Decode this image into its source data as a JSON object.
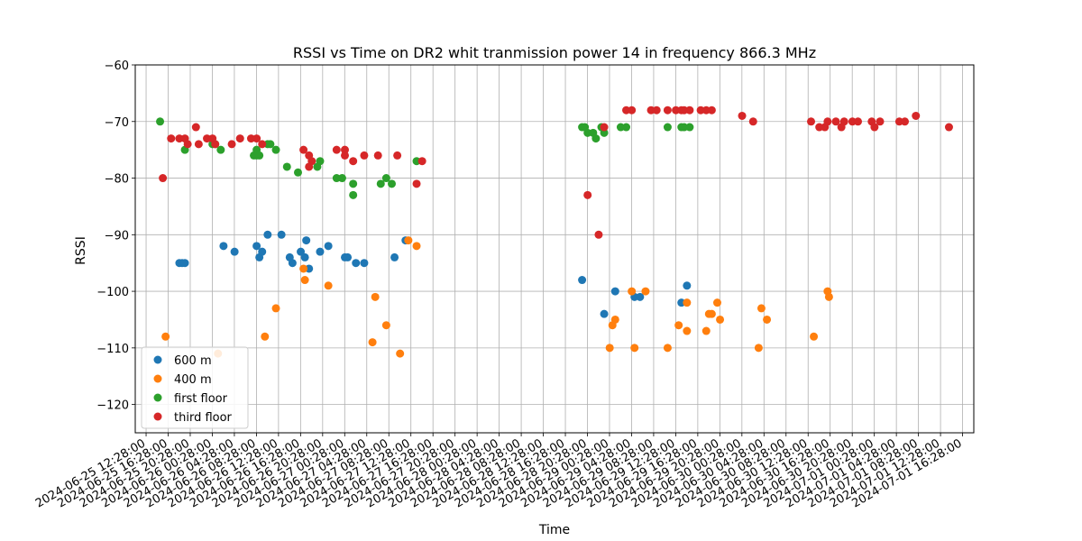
{
  "chart_data": {
    "type": "scatter",
    "title": "RSSI vs Time on DR2  whit tranmission power 14 in frequency 866.3 MHz",
    "xlabel": "Time",
    "ylabel": "RSSI",
    "ylim": [
      -125,
      -60
    ],
    "yticks": [
      -60,
      -70,
      -80,
      -90,
      -100,
      -110,
      -120
    ],
    "xlim": [
      "2024-06-25 10:30",
      "2024-07-01 18:30"
    ],
    "xticks": [
      "2024-06-25 12:28:00",
      "2024-06-25 16:28:00",
      "2024-06-25 20:28:00",
      "2024-06-26 00:28:00",
      "2024-06-26 04:28:00",
      "2024-06-26 08:28:00",
      "2024-06-26 12:28:00",
      "2024-06-26 16:28:00",
      "2024-06-26 20:28:00",
      "2024-06-27 00:28:00",
      "2024-06-27 04:28:00",
      "2024-06-27 08:28:00",
      "2024-06-27 12:28:00",
      "2024-06-27 16:28:00",
      "2024-06-27 20:28:00",
      "2024-06-28 00:28:00",
      "2024-06-28 04:28:00",
      "2024-06-28 08:28:00",
      "2024-06-28 12:28:00",
      "2024-06-28 16:28:00",
      "2024-06-28 20:28:00",
      "2024-06-29 00:28:00",
      "2024-06-29 04:28:00",
      "2024-06-29 08:28:00",
      "2024-06-29 12:28:00",
      "2024-06-29 16:28:00",
      "2024-06-29 20:28:00",
      "2024-06-30 00:28:00",
      "2024-06-30 04:28:00",
      "2024-06-30 08:28:00",
      "2024-06-30 12:28:00",
      "2024-06-30 16:28:00",
      "2024-06-30 20:28:00",
      "2024-07-01 00:28:00",
      "2024-07-01 04:28:00",
      "2024-07-01 08:28:00",
      "2024-07-01 12:28:00",
      "2024-07-01 16:28:00"
    ],
    "grid": true,
    "legend_position": "lower-left",
    "series": [
      {
        "name": "600 m",
        "color": "#1f77b4",
        "points": [
          [
            "2024-06-25 18:30",
            -95
          ],
          [
            "2024-06-25 19:00",
            -95
          ],
          [
            "2024-06-25 19:30",
            -95
          ],
          [
            "2024-06-26 02:30",
            -92
          ],
          [
            "2024-06-26 04:30",
            -93
          ],
          [
            "2024-06-26 08:30",
            -92
          ],
          [
            "2024-06-26 09:00",
            -94
          ],
          [
            "2024-06-26 09:30",
            -93
          ],
          [
            "2024-06-26 10:30",
            -90
          ],
          [
            "2024-06-26 13:00",
            -90
          ],
          [
            "2024-06-26 14:30",
            -94
          ],
          [
            "2024-06-26 15:00",
            -95
          ],
          [
            "2024-06-26 16:30",
            -93
          ],
          [
            "2024-06-26 17:15",
            -94
          ],
          [
            "2024-06-26 17:30",
            -91
          ],
          [
            "2024-06-26 18:00",
            -96
          ],
          [
            "2024-06-26 20:00",
            -93
          ],
          [
            "2024-06-26 21:30",
            -92
          ],
          [
            "2024-06-27 00:30",
            -94
          ],
          [
            "2024-06-27 01:00",
            -94
          ],
          [
            "2024-06-27 02:30",
            -95
          ],
          [
            "2024-06-27 04:00",
            -95
          ],
          [
            "2024-06-27 09:30",
            -94
          ],
          [
            "2024-06-27 11:30",
            -91
          ],
          [
            "2024-06-28 19:30",
            -98
          ],
          [
            "2024-06-28 23:30",
            -104
          ],
          [
            "2024-06-29 01:30",
            -100
          ],
          [
            "2024-06-29 05:00",
            -101
          ],
          [
            "2024-06-29 06:00",
            -101
          ],
          [
            "2024-06-29 13:30",
            -102
          ],
          [
            "2024-06-29 14:30",
            -99
          ]
        ]
      },
      {
        "name": "400 m",
        "color": "#ff7f0e",
        "points": [
          [
            "2024-06-25 16:00",
            -108
          ],
          [
            "2024-06-26 01:30",
            -111
          ],
          [
            "2024-06-26 10:00",
            -108
          ],
          [
            "2024-06-26 12:00",
            -103
          ],
          [
            "2024-06-26 17:00",
            -96
          ],
          [
            "2024-06-26 17:15",
            -98
          ],
          [
            "2024-06-26 21:30",
            -99
          ],
          [
            "2024-06-27 05:30",
            -109
          ],
          [
            "2024-06-27 06:00",
            -101
          ],
          [
            "2024-06-27 08:00",
            -106
          ],
          [
            "2024-06-27 10:30",
            -111
          ],
          [
            "2024-06-27 12:00",
            -91
          ],
          [
            "2024-06-27 13:30",
            -92
          ],
          [
            "2024-06-29 00:30",
            -110
          ],
          [
            "2024-06-29 01:00",
            -106
          ],
          [
            "2024-06-29 01:30",
            -105
          ],
          [
            "2024-06-29 04:30",
            -100
          ],
          [
            "2024-06-29 05:00",
            -110
          ],
          [
            "2024-06-29 07:00",
            -100
          ],
          [
            "2024-06-29 11:00",
            -110
          ],
          [
            "2024-06-29 13:00",
            -106
          ],
          [
            "2024-06-29 14:30",
            -107
          ],
          [
            "2024-06-29 14:30",
            -102
          ],
          [
            "2024-06-29 18:00",
            -107
          ],
          [
            "2024-06-29 18:30",
            -104
          ],
          [
            "2024-06-29 19:00",
            -104
          ],
          [
            "2024-06-29 20:00",
            -102
          ],
          [
            "2024-06-29 20:30",
            -105
          ],
          [
            "2024-06-30 03:30",
            -110
          ],
          [
            "2024-06-30 04:00",
            -103
          ],
          [
            "2024-06-30 05:00",
            -105
          ],
          [
            "2024-06-30 13:30",
            -108
          ],
          [
            "2024-06-30 16:00",
            -100
          ],
          [
            "2024-06-30 16:15",
            -101
          ]
        ]
      },
      {
        "name": "first floor",
        "color": "#2ca02c",
        "points": [
          [
            "2024-06-25 15:00",
            -70
          ],
          [
            "2024-06-25 19:30",
            -75
          ],
          [
            "2024-06-26 00:30",
            -74
          ],
          [
            "2024-06-26 01:00",
            -74
          ],
          [
            "2024-06-26 02:00",
            -75
          ],
          [
            "2024-06-26 08:00",
            -76
          ],
          [
            "2024-06-26 08:30",
            -75
          ],
          [
            "2024-06-26 08:30",
            -76
          ],
          [
            "2024-06-26 09:00",
            -76
          ],
          [
            "2024-06-26 10:30",
            -74
          ],
          [
            "2024-06-26 11:00",
            -74
          ],
          [
            "2024-06-26 12:00",
            -75
          ],
          [
            "2024-06-26 14:00",
            -78
          ],
          [
            "2024-06-26 16:00",
            -79
          ],
          [
            "2024-06-26 19:30",
            -78
          ],
          [
            "2024-06-26 20:00",
            -77
          ],
          [
            "2024-06-26 23:00",
            -80
          ],
          [
            "2024-06-27 00:00",
            -80
          ],
          [
            "2024-06-27 02:00",
            -83
          ],
          [
            "2024-06-27 02:00",
            -81
          ],
          [
            "2024-06-27 07:00",
            -81
          ],
          [
            "2024-06-27 08:00",
            -80
          ],
          [
            "2024-06-27 09:00",
            -81
          ],
          [
            "2024-06-27 13:30",
            -77
          ],
          [
            "2024-06-28 19:30",
            -71
          ],
          [
            "2024-06-28 20:00",
            -71
          ],
          [
            "2024-06-28 20:30",
            -72
          ],
          [
            "2024-06-28 21:30",
            -72
          ],
          [
            "2024-06-28 22:00",
            -73
          ],
          [
            "2024-06-28 23:00",
            -71
          ],
          [
            "2024-06-28 23:30",
            -72
          ],
          [
            "2024-06-29 02:30",
            -71
          ],
          [
            "2024-06-29 03:30",
            -71
          ],
          [
            "2024-06-29 11:00",
            -71
          ],
          [
            "2024-06-29 13:30",
            -71
          ],
          [
            "2024-06-29 14:00",
            -71
          ],
          [
            "2024-06-29 15:00",
            -71
          ]
        ]
      },
      {
        "name": "third floor",
        "color": "#d62728",
        "points": [
          [
            "2024-06-25 15:30",
            -80
          ],
          [
            "2024-06-25 17:00",
            -73
          ],
          [
            "2024-06-25 18:30",
            -73
          ],
          [
            "2024-06-25 19:30",
            -73
          ],
          [
            "2024-06-25 20:00",
            -74
          ],
          [
            "2024-06-25 21:30",
            -71
          ],
          [
            "2024-06-25 22:00",
            -74
          ],
          [
            "2024-06-25 23:30",
            -73
          ],
          [
            "2024-06-26 00:30",
            -73
          ],
          [
            "2024-06-26 01:00",
            -74
          ],
          [
            "2024-06-26 04:00",
            -74
          ],
          [
            "2024-06-26 05:30",
            -73
          ],
          [
            "2024-06-26 07:30",
            -73
          ],
          [
            "2024-06-26 08:30",
            -73
          ],
          [
            "2024-06-26 09:30",
            -74
          ],
          [
            "2024-06-26 17:00",
            -75
          ],
          [
            "2024-06-26 18:00",
            -76
          ],
          [
            "2024-06-26 18:30",
            -77
          ],
          [
            "2024-06-26 18:00",
            -78
          ],
          [
            "2024-06-26 23:00",
            -75
          ],
          [
            "2024-06-27 00:30",
            -75
          ],
          [
            "2024-06-27 00:30",
            -76
          ],
          [
            "2024-06-27 02:00",
            -77
          ],
          [
            "2024-06-27 04:00",
            -76
          ],
          [
            "2024-06-27 06:30",
            -76
          ],
          [
            "2024-06-27 10:00",
            -76
          ],
          [
            "2024-06-27 13:30",
            -81
          ],
          [
            "2024-06-27 14:30",
            -77
          ],
          [
            "2024-06-28 20:30",
            -83
          ],
          [
            "2024-06-28 22:30",
            -90
          ],
          [
            "2024-06-28 23:30",
            -71
          ],
          [
            "2024-06-29 03:30",
            -68
          ],
          [
            "2024-06-29 04:30",
            -68
          ],
          [
            "2024-06-29 08:00",
            -68
          ],
          [
            "2024-06-29 09:00",
            -68
          ],
          [
            "2024-06-29 11:00",
            -68
          ],
          [
            "2024-06-29 12:30",
            -68
          ],
          [
            "2024-06-29 13:30",
            -68
          ],
          [
            "2024-06-29 14:00",
            -68
          ],
          [
            "2024-06-29 15:00",
            -68
          ],
          [
            "2024-06-29 17:00",
            -68
          ],
          [
            "2024-06-29 18:00",
            -68
          ],
          [
            "2024-06-29 19:00",
            -68
          ],
          [
            "2024-06-30 00:30",
            -69
          ],
          [
            "2024-06-30 02:30",
            -70
          ],
          [
            "2024-06-30 13:00",
            -70
          ],
          [
            "2024-06-30 14:30",
            -71
          ],
          [
            "2024-06-30 15:30",
            -71
          ],
          [
            "2024-06-30 16:00",
            -70
          ],
          [
            "2024-06-30 17:30",
            -70
          ],
          [
            "2024-06-30 18:30",
            -71
          ],
          [
            "2024-06-30 19:00",
            -70
          ],
          [
            "2024-06-30 20:30",
            -70
          ],
          [
            "2024-06-30 21:30",
            -70
          ],
          [
            "2024-07-01 00:00",
            -70
          ],
          [
            "2024-07-01 00:30",
            -71
          ],
          [
            "2024-07-01 01:30",
            -70
          ],
          [
            "2024-07-01 05:00",
            -70
          ],
          [
            "2024-07-01 06:00",
            -70
          ],
          [
            "2024-07-01 08:00",
            -69
          ],
          [
            "2024-07-01 14:00",
            -71
          ]
        ]
      }
    ]
  }
}
